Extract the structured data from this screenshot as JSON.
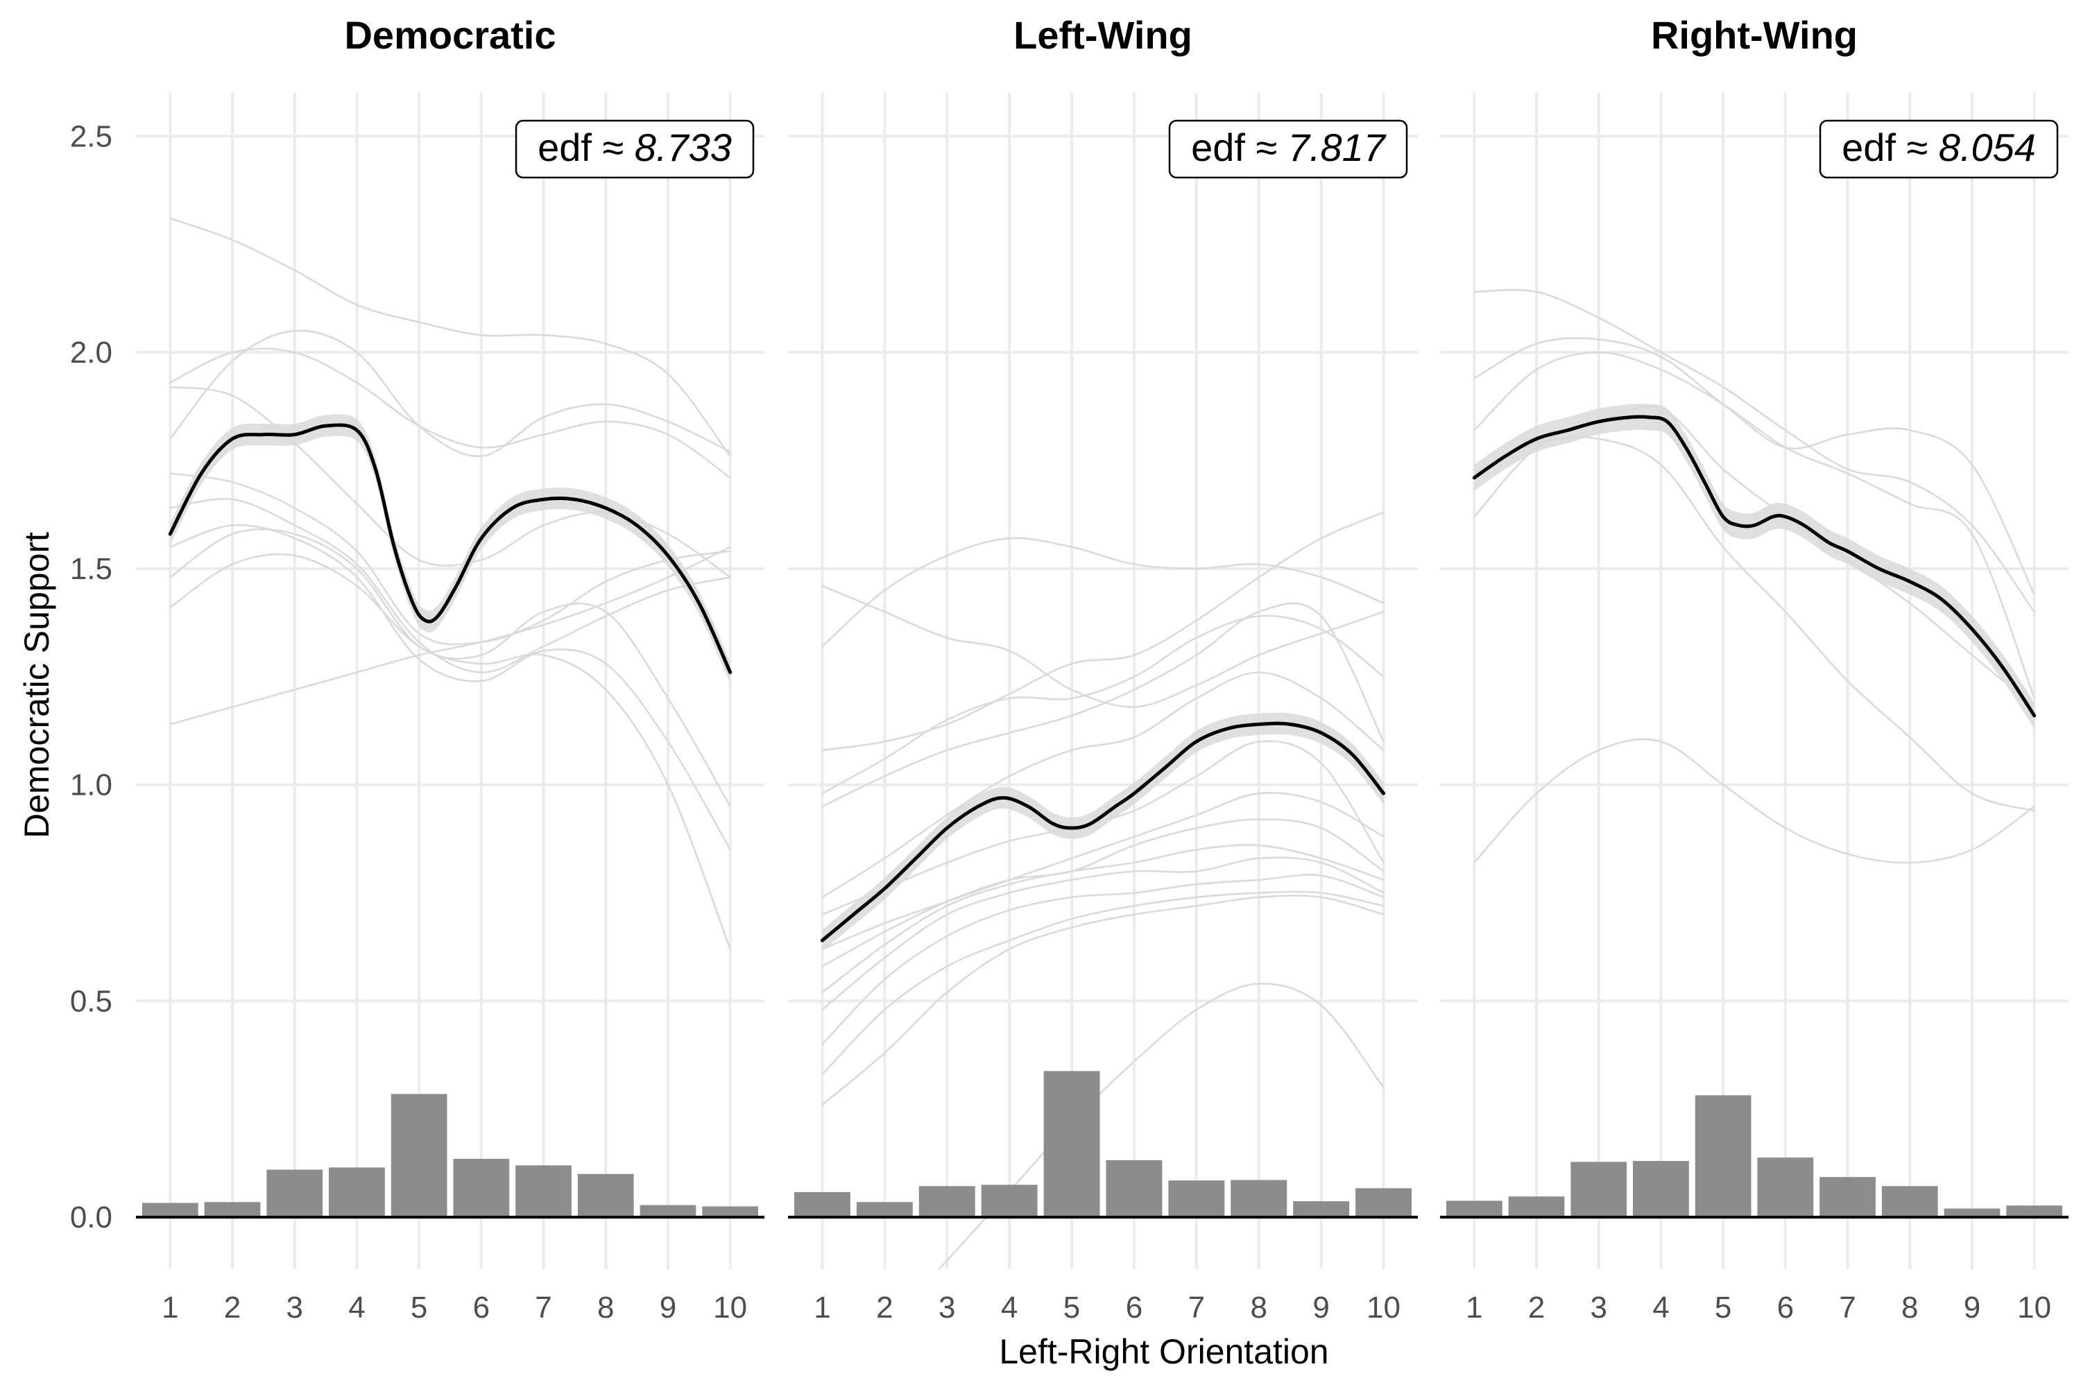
{
  "chart_data": {
    "type": "line",
    "xlabel": "Left-Right Orientation",
    "ylabel": "Democratic Support",
    "ylim": [
      -0.12,
      2.6
    ],
    "yticks": [
      0.0,
      0.5,
      1.0,
      1.5,
      2.0,
      2.5
    ],
    "ytick_labels": [
      "0.0",
      "0.5",
      "1.0",
      "1.5",
      "2.0",
      "2.5"
    ],
    "xticks": [
      1,
      2,
      3,
      4,
      5,
      6,
      7,
      8,
      9,
      10
    ],
    "xtick_labels": [
      "1",
      "2",
      "3",
      "4",
      "5",
      "6",
      "7",
      "8",
      "9",
      "10"
    ],
    "grid": true,
    "colors": {
      "main_line": "#000000",
      "ribbon": "#d9d9d9",
      "country_lines": "#dadada",
      "bars": "#8c8c8c",
      "grid": "#ebebeb"
    },
    "panels": [
      {
        "title": "Democratic",
        "edf_prefix": "edf ≈ ",
        "edf_value": "8.733",
        "main_curve": {
          "x": [
            1,
            1.5,
            2,
            2.5,
            3,
            3.5,
            4,
            4.3,
            4.6,
            4.9,
            5.1,
            5.3,
            5.6,
            6,
            6.5,
            7,
            7.5,
            8,
            8.5,
            9,
            9.5,
            10
          ],
          "y": [
            1.58,
            1.72,
            1.8,
            1.81,
            1.81,
            1.83,
            1.82,
            1.73,
            1.55,
            1.42,
            1.38,
            1.39,
            1.46,
            1.57,
            1.64,
            1.66,
            1.66,
            1.64,
            1.6,
            1.53,
            1.42,
            1.26
          ],
          "band": 0.025
        },
        "country_curves": [
          [
            2.31,
            2.26,
            2.19,
            2.11,
            2.07,
            2.04,
            2.04,
            2.02,
            1.95,
            1.76
          ],
          [
            1.93,
            2.0,
            2.0,
            1.93,
            1.83,
            1.78,
            1.81,
            1.84,
            1.81,
            1.71
          ],
          [
            1.8,
            1.98,
            2.05,
            2.0,
            1.83,
            1.76,
            1.85,
            1.88,
            1.84,
            1.77
          ],
          [
            1.92,
            1.9,
            1.79,
            1.65,
            1.52,
            1.52,
            1.6,
            1.63,
            1.58,
            1.48
          ],
          [
            1.72,
            1.7,
            1.64,
            1.54,
            1.35,
            1.33,
            1.38,
            1.47,
            1.52,
            1.54
          ],
          [
            1.64,
            1.66,
            1.6,
            1.51,
            1.33,
            1.26,
            1.32,
            1.39,
            1.45,
            1.48
          ],
          [
            1.55,
            1.6,
            1.57,
            1.48,
            1.29,
            1.24,
            1.31,
            1.28,
            1.1,
            0.85
          ],
          [
            1.48,
            1.58,
            1.58,
            1.5,
            1.32,
            1.3,
            1.4,
            1.4,
            1.2,
            0.95
          ],
          [
            1.41,
            1.51,
            1.53,
            1.46,
            1.32,
            1.28,
            1.3,
            1.22,
            1.0,
            0.62
          ],
          [
            1.14,
            1.18,
            1.22,
            1.26,
            1.3,
            1.33,
            1.37,
            1.42,
            1.48,
            1.55
          ]
        ],
        "histogram": [
          0.033,
          0.035,
          0.11,
          0.115,
          0.285,
          0.135,
          0.12,
          0.1,
          0.028,
          0.025
        ]
      },
      {
        "title": "Left-Wing",
        "edf_prefix": "edf ≈ ",
        "edf_value": "7.817",
        "main_curve": {
          "x": [
            1,
            1.5,
            2,
            2.5,
            3,
            3.5,
            3.9,
            4.3,
            4.7,
            5,
            5.3,
            5.7,
            6,
            6.5,
            7,
            7.5,
            8,
            8.5,
            9,
            9.5,
            10
          ],
          "y": [
            0.64,
            0.7,
            0.76,
            0.83,
            0.9,
            0.95,
            0.97,
            0.95,
            0.91,
            0.9,
            0.91,
            0.95,
            0.98,
            1.04,
            1.1,
            1.13,
            1.14,
            1.14,
            1.12,
            1.07,
            0.98
          ],
          "band": 0.025
        },
        "country_curves": [
          [
            1.32,
            1.45,
            1.53,
            1.57,
            1.55,
            1.51,
            1.5,
            1.51,
            1.48,
            1.42
          ],
          [
            1.46,
            1.4,
            1.34,
            1.31,
            1.22,
            1.18,
            1.23,
            1.3,
            1.35,
            1.4
          ],
          [
            1.08,
            1.1,
            1.14,
            1.21,
            1.28,
            1.3,
            1.38,
            1.48,
            1.57,
            1.63
          ],
          [
            0.98,
            1.06,
            1.15,
            1.2,
            1.2,
            1.25,
            1.34,
            1.39,
            1.36,
            1.25
          ],
          [
            0.95,
            1.02,
            1.08,
            1.12,
            1.16,
            1.22,
            1.3,
            1.4,
            1.39,
            1.1
          ],
          [
            0.74,
            0.83,
            0.93,
            1.02,
            1.08,
            1.11,
            1.2,
            1.26,
            1.2,
            1.08
          ],
          [
            0.7,
            0.76,
            0.82,
            0.87,
            0.9,
            0.94,
            1.02,
            1.1,
            1.05,
            0.82
          ],
          [
            0.62,
            0.68,
            0.73,
            0.78,
            0.83,
            0.88,
            0.93,
            0.98,
            0.96,
            0.88
          ],
          [
            0.58,
            0.66,
            0.73,
            0.78,
            0.8,
            0.86,
            0.9,
            0.92,
            0.9,
            0.8
          ],
          [
            0.52,
            0.63,
            0.72,
            0.77,
            0.8,
            0.82,
            0.85,
            0.86,
            0.83,
            0.78
          ],
          [
            0.48,
            0.6,
            0.7,
            0.75,
            0.78,
            0.8,
            0.8,
            0.83,
            0.82,
            0.75
          ],
          [
            0.4,
            0.55,
            0.65,
            0.71,
            0.74,
            0.75,
            0.77,
            0.78,
            0.79,
            0.74
          ],
          [
            0.33,
            0.48,
            0.58,
            0.64,
            0.69,
            0.72,
            0.74,
            0.75,
            0.75,
            0.72
          ],
          [
            0.26,
            0.38,
            0.52,
            0.62,
            0.67,
            0.7,
            0.72,
            0.74,
            0.74,
            0.7
          ],
          [
            -0.3,
            -0.25,
            -0.1,
            0.06,
            0.22,
            0.36,
            0.48,
            0.54,
            0.49,
            0.3
          ]
        ],
        "histogram": [
          0.058,
          0.035,
          0.072,
          0.075,
          0.338,
          0.132,
          0.085,
          0.086,
          0.037,
          0.067
        ]
      },
      {
        "title": "Right-Wing",
        "edf_prefix": "edf ≈ ",
        "edf_value": "8.054",
        "main_curve": {
          "x": [
            1,
            1.5,
            2,
            2.5,
            3,
            3.5,
            3.8,
            4.1,
            4.4,
            4.7,
            5,
            5.25,
            5.5,
            5.8,
            6,
            6.3,
            6.7,
            7,
            7.5,
            8,
            8.5,
            9,
            9.5,
            10
          ],
          "y": [
            1.71,
            1.76,
            1.8,
            1.82,
            1.84,
            1.85,
            1.85,
            1.84,
            1.78,
            1.7,
            1.62,
            1.6,
            1.6,
            1.62,
            1.62,
            1.6,
            1.56,
            1.54,
            1.5,
            1.47,
            1.43,
            1.36,
            1.27,
            1.16
          ],
          "band": 0.03
        },
        "country_curves": [
          [
            2.14,
            2.14,
            2.08,
            2.0,
            1.92,
            1.82,
            1.73,
            1.7,
            1.6,
            1.4
          ],
          [
            1.94,
            2.02,
            2.03,
            1.99,
            1.88,
            1.78,
            1.81,
            1.82,
            1.74,
            1.44
          ],
          [
            1.82,
            1.96,
            2.0,
            1.96,
            1.88,
            1.78,
            1.72,
            1.65,
            1.58,
            1.2
          ],
          [
            1.62,
            1.78,
            1.84,
            1.87,
            1.73,
            1.62,
            1.52,
            1.42,
            1.3,
            1.18
          ],
          [
            1.72,
            1.79,
            1.8,
            1.74,
            1.55,
            1.4,
            1.24,
            1.11,
            0.98,
            0.94
          ],
          [
            0.82,
            0.98,
            1.08,
            1.1,
            1.0,
            0.9,
            0.84,
            0.82,
            0.85,
            0.95
          ]
        ],
        "histogram": [
          0.038,
          0.048,
          0.128,
          0.13,
          0.282,
          0.138,
          0.093,
          0.072,
          0.02,
          0.027
        ]
      }
    ]
  }
}
